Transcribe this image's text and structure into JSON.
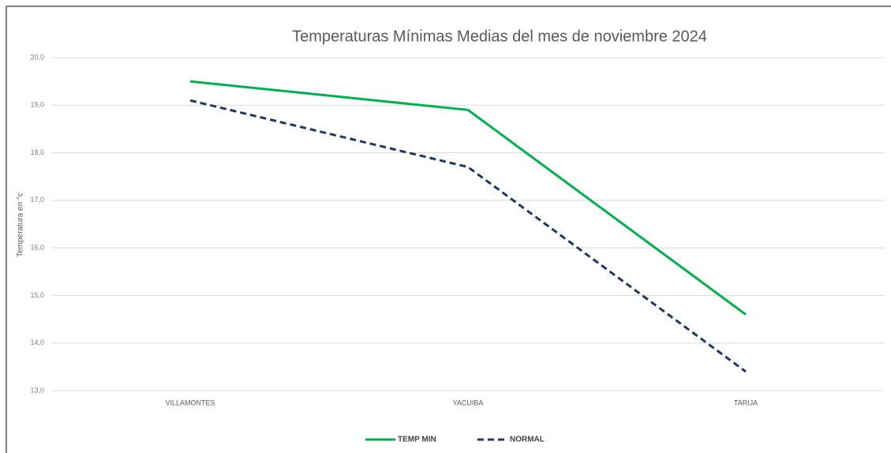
{
  "chart_data": {
    "type": "line",
    "title": "Temperaturas Mínimas Medias del mes de noviembre 2024",
    "y_label": "Temperatura en °c",
    "categories": [
      "VILLAMONTES",
      "YACUIBA",
      "TARIJA"
    ],
    "series": [
      {
        "name": "TEMP MIN",
        "color": "#00b050",
        "line_style": "solid",
        "values": [
          19.5,
          18.9,
          14.6
        ]
      },
      {
        "name": "NORMAL",
        "color": "#1f3864",
        "line_style": "dashed",
        "values": [
          19.1,
          17.7,
          13.4
        ]
      }
    ],
    "ylim": [
      13,
      20
    ],
    "yticks": [
      {
        "value": 13,
        "label": "13,0"
      },
      {
        "value": 14,
        "label": "14,0"
      },
      {
        "value": 15,
        "label": "15,0"
      },
      {
        "value": 16,
        "label": "16,0"
      },
      {
        "value": 17,
        "label": "17,0"
      },
      {
        "value": 18,
        "label": "18,0"
      },
      {
        "value": 19,
        "label": "19,0"
      },
      {
        "value": 20,
        "label": "20,0"
      }
    ],
    "grid": true,
    "legend": "bottom"
  }
}
